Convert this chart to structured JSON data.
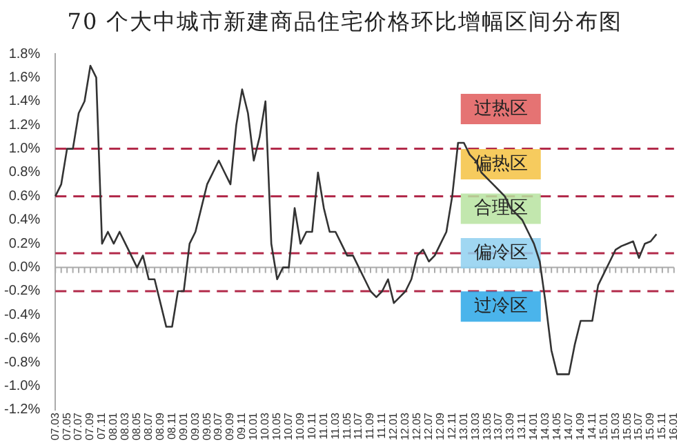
{
  "chart_data": {
    "type": "line",
    "title": "70 个大中城市新建商品住宅价格环比增幅区间分布图",
    "categories": [
      "07.03",
      null,
      "07.05",
      null,
      "07.07",
      null,
      "07.09",
      null,
      "07.11",
      null,
      "08.01",
      null,
      "08.03",
      null,
      "08.05",
      null,
      "08.07",
      null,
      "08.09",
      null,
      "08.11",
      null,
      "09.01",
      null,
      "09.03",
      null,
      "09.05",
      null,
      "09.07",
      null,
      "09.09",
      null,
      "09.11",
      null,
      "10.01",
      null,
      "10.03",
      null,
      "10.05",
      null,
      "10.07",
      null,
      "10.09",
      null,
      "10.11",
      null,
      "11.01",
      null,
      "11.03",
      null,
      "11.05",
      null,
      "11.07",
      null,
      "11.09",
      null,
      "11.11",
      null,
      "12.01",
      null,
      "12.03",
      null,
      "12.05",
      null,
      "12.07",
      null,
      "12.09",
      null,
      "12.11",
      null,
      "13.01",
      null,
      "13.03",
      null,
      "13.05",
      null,
      "13.07",
      null,
      "13.09",
      null,
      "13.11",
      null,
      "14.01",
      null,
      "14.03",
      null,
      "14.05",
      null,
      "14.07",
      null,
      "14.09",
      null,
      "14.11",
      null,
      "15.01",
      null,
      "15.03",
      null,
      "15.05",
      null,
      "15.07",
      null,
      "15.09",
      null,
      "15.11",
      null,
      "16.01"
    ],
    "series": [
      {
        "color": "#333333",
        "values": [
          0.6,
          0.7,
          1.0,
          1.0,
          1.3,
          1.4,
          1.7,
          1.6,
          0.2,
          0.3,
          0.2,
          0.3,
          0.2,
          0.1,
          0.0,
          0.1,
          -0.1,
          -0.1,
          -0.3,
          -0.5,
          -0.5,
          -0.2,
          -0.2,
          0.2,
          0.3,
          0.5,
          0.7,
          0.8,
          0.9,
          0.8,
          0.7,
          1.2,
          1.5,
          1.3,
          0.9,
          1.1,
          1.4,
          0.2,
          -0.1,
          0.0,
          0.0,
          0.5,
          0.2,
          0.3,
          0.3,
          0.8,
          0.5,
          0.3,
          0.3,
          0.2,
          0.1,
          0.1,
          0.0,
          -0.1,
          -0.2,
          -0.25,
          -0.2,
          -0.1,
          -0.3,
          -0.25,
          -0.2,
          -0.1,
          0.1,
          0.15,
          0.05,
          0.1,
          0.2,
          0.3,
          0.6,
          1.05,
          1.05,
          0.95,
          0.9,
          0.8,
          0.75,
          0.7,
          0.65,
          0.6,
          0.5,
          0.45,
          0.4,
          0.3,
          0.2,
          0.05,
          -0.3,
          -0.7,
          -0.9,
          -0.9,
          -0.9,
          -0.65,
          -0.45,
          -0.45,
          -0.45,
          -0.15,
          -0.05,
          0.05,
          0.15,
          0.18,
          0.2,
          0.22,
          0.08,
          0.2,
          0.22,
          0.28,
          null,
          null,
          null
        ]
      }
    ],
    "ylim": [
      -1.2,
      1.8
    ],
    "yticks": [
      {
        "value": -1.2,
        "label": "-1.2%"
      },
      {
        "value": -1.0,
        "label": "-1.0%"
      },
      {
        "value": -0.8,
        "label": "-0.8%"
      },
      {
        "value": -0.6,
        "label": "-0.6%"
      },
      {
        "value": -0.4,
        "label": "-0.4%"
      },
      {
        "value": -0.2,
        "label": "-0.2%"
      },
      {
        "value": 0,
        "label": "0.0%"
      },
      {
        "value": 0.2,
        "label": "0.2%"
      },
      {
        "value": 0.4,
        "label": "0.4%"
      },
      {
        "value": 0.6,
        "label": "0.6%"
      },
      {
        "value": 0.8,
        "label": "0.8%"
      },
      {
        "value": 1.0,
        "label": "1.0%"
      },
      {
        "value": 1.2,
        "label": "1.2%"
      },
      {
        "value": 1.4,
        "label": "1.4%"
      },
      {
        "value": 1.6,
        "label": "1.6%"
      },
      {
        "value": 1.8,
        "label": "1.8%"
      }
    ],
    "ref_lines": [
      {
        "axis": "y",
        "value": 1.0,
        "color": "#b22a4a",
        "line_style": "dashed"
      },
      {
        "axis": "y",
        "value": 0.6,
        "color": "#b22a4a",
        "line_style": "dashed"
      },
      {
        "axis": "y",
        "value": 0.12,
        "color": "#b22a4a",
        "line_style": "dashed"
      },
      {
        "axis": "y",
        "value": -0.2,
        "color": "#b22a4a",
        "line_style": "dashed"
      }
    ],
    "annotations": [
      "过热区",
      "偏热区",
      "合理区",
      "偏冷区",
      "过冷区"
    ],
    "grid": false,
    "legend": false,
    "marker": "none",
    "line_style": "solid"
  }
}
